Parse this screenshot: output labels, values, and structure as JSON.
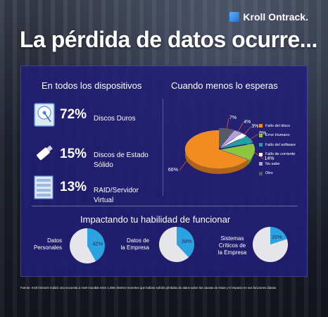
{
  "brand": {
    "name": "Kroll Ontrack."
  },
  "title": "La pérdida de datos ocurre...",
  "sections": {
    "devices_title": "En todos los dispositivos",
    "pie_title": "Cuando menos lo esperas",
    "impact_title": "Impactando tu habilidad de funcionar"
  },
  "devices": [
    {
      "icon": "hard-drive-icon",
      "pct": "72%",
      "label": "Discos Duros"
    },
    {
      "icon": "usb-drive-icon",
      "pct": "15%",
      "label_line1": "Discos de Estado",
      "label_line2": "Sólido"
    },
    {
      "icon": "server-rack-icon",
      "pct": "13%",
      "label": "RAID/Servidor Virtual"
    }
  ],
  "chart_data": [
    {
      "type": "pie",
      "title": "Cuando menos lo esperas",
      "slices": [
        {
          "label": "Fallo del disco",
          "value": 66,
          "pct_label": "66%",
          "color": "#f28c1e"
        },
        {
          "label": "Error Humano",
          "value": 14,
          "pct_label": "14%",
          "color": "#8cc63f"
        },
        {
          "label": "Fallo del software",
          "value": 6,
          "pct_label": "6%",
          "color": "#1e9fa8"
        },
        {
          "label": "Fallo de corriente",
          "value": 3,
          "pct_label": "3%",
          "color": "#ffffff"
        },
        {
          "label": "No sabe",
          "value": 4,
          "pct_label": "4%",
          "color": "#b39ddb"
        },
        {
          "label": "Otro",
          "value": 7,
          "pct_label": "7%",
          "color": "#555b66"
        }
      ],
      "legend_position": "right"
    },
    {
      "type": "pie",
      "title": "Datos Personales",
      "values": [
        42,
        58
      ],
      "label": "42%",
      "colors": [
        "#2aa3e0",
        "#e6e6ea"
      ]
    },
    {
      "type": "pie",
      "title": "Datos de la Empresa",
      "values": [
        38,
        62
      ],
      "label": "38%",
      "colors": [
        "#2aa3e0",
        "#e6e6ea"
      ]
    },
    {
      "type": "pie",
      "title": "Sistemas Críticos de la Empresa",
      "values": [
        20,
        80
      ],
      "label": "20%",
      "colors": [
        "#2aa3e0",
        "#e6e6ea"
      ]
    }
  ],
  "impact": [
    {
      "line1": "Datos",
      "line2": "Personales",
      "line3": ""
    },
    {
      "line1": "Datos de",
      "line2": "la Empresa",
      "line3": ""
    },
    {
      "line1": "Sistemas",
      "line2": "Críticos de",
      "line3": "la Empresa"
    }
  ],
  "footnote": "Fuente: Kroll Ontrack realizó una encuesta a nivel mundial entre 1,066 clientes recientes que habían sufrido pérdidas de datos sobre las causas de éstas y el impacto en sus funciones diarias."
}
